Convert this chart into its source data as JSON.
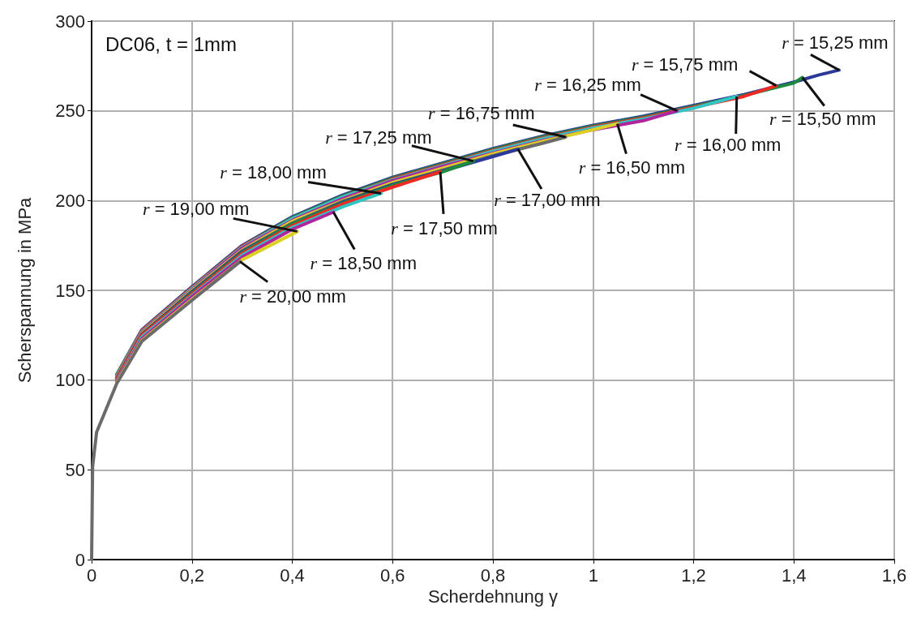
{
  "chart_data": {
    "type": "line",
    "title": "DC06, t = 1mm",
    "xlabel": "Scherdehnung γ",
    "ylabel": "Scherspannung in MPa",
    "xlim": [
      0,
      1.6
    ],
    "ylim": [
      0,
      300
    ],
    "xticks": [
      0,
      {
        "value": 0.2,
        "label": "0,2"
      },
      {
        "value": 0.4,
        "label": "0,4"
      },
      {
        "value": 0.6,
        "label": "0,6"
      },
      {
        "value": 0.8,
        "label": "0,8"
      },
      1,
      {
        "value": 1.2,
        "label": "1,2"
      },
      {
        "value": 1.4,
        "label": "1,4"
      },
      {
        "value": 1.6,
        "label": "1,6"
      }
    ],
    "yticks": [
      0,
      50,
      100,
      150,
      200,
      250,
      300
    ],
    "grid": true,
    "legend": false,
    "marker": "none",
    "line_style": "solid",
    "series": [
      {
        "name": "r = 15,25 mm",
        "color": "#2b3a98",
        "x": [
          0.05,
          0.1,
          0.2,
          0.3,
          0.4,
          0.5,
          0.6,
          0.7,
          0.8,
          0.9,
          1.0,
          1.1,
          1.2,
          1.3,
          1.4,
          1.45,
          1.49
        ],
        "values": [
          103,
          128,
          152,
          175,
          191,
          203,
          213,
          221,
          229,
          236,
          242,
          247,
          253,
          259,
          266,
          270,
          272.7
        ]
      },
      {
        "name": "r = 15,50 mm",
        "color": "#1a8c3c",
        "x": [
          0.05,
          0.1,
          0.2,
          0.3,
          0.4,
          0.5,
          0.6,
          0.7,
          0.8,
          0.9,
          1.0,
          1.1,
          1.2,
          1.3,
          1.4,
          1.417
        ],
        "values": [
          103,
          127.5,
          151.5,
          174.5,
          190.5,
          202.5,
          212.5,
          220.5,
          228.5,
          235.5,
          241.5,
          246.5,
          252.5,
          258.5,
          265.5,
          268.6
        ]
      },
      {
        "name": "r = 15,75 mm",
        "color": "#ee2a24",
        "x": [
          0.05,
          0.1,
          0.2,
          0.3,
          0.4,
          0.5,
          0.6,
          0.7,
          0.8,
          0.9,
          1.0,
          1.1,
          1.2,
          1.3,
          1.365
        ],
        "values": [
          102.5,
          127.5,
          151.5,
          174.5,
          190,
          202,
          212,
          220,
          228,
          235,
          241,
          246,
          252,
          258,
          264
        ]
      },
      {
        "name": "r = 16,00 mm",
        "color": "#33c4c4",
        "x": [
          0.05,
          0.1,
          0.2,
          0.3,
          0.4,
          0.5,
          0.6,
          0.7,
          0.8,
          0.9,
          1.0,
          1.1,
          1.2,
          1.286
        ],
        "values": [
          102.5,
          127,
          151,
          174,
          190,
          202,
          211.5,
          219.5,
          227.5,
          234.5,
          240.5,
          245.5,
          251.5,
          258
        ]
      },
      {
        "name": "r = 16,25 mm",
        "color": "#b0249c",
        "x": [
          0.05,
          0.1,
          0.2,
          0.3,
          0.4,
          0.5,
          0.6,
          0.7,
          0.8,
          0.9,
          1.0,
          1.1,
          1.167
        ],
        "values": [
          102,
          126.5,
          150.5,
          173.5,
          189,
          201,
          211,
          219,
          226.5,
          233.5,
          239.5,
          244.5,
          250
        ]
      },
      {
        "name": "r = 16,50 mm",
        "color": "#ddd024",
        "x": [
          0.05,
          0.1,
          0.2,
          0.3,
          0.4,
          0.5,
          0.6,
          0.7,
          0.8,
          0.9,
          1.0,
          1.048
        ],
        "values": [
          101.5,
          126,
          150,
          172.5,
          188.5,
          200,
          210,
          218,
          226,
          233,
          239.5,
          242.8
        ]
      },
      {
        "name": "r = 16,75 mm",
        "color": "#6b6b6b",
        "x": [
          0.05,
          0.1,
          0.2,
          0.3,
          0.4,
          0.5,
          0.6,
          0.7,
          0.8,
          0.9,
          0.945
        ],
        "values": [
          101,
          125.5,
          149.5,
          172,
          187.5,
          199.5,
          209,
          217,
          225,
          232,
          235.4
        ]
      },
      {
        "name": "r = 17,00 mm",
        "color": "#2b3a98",
        "x": [
          0.05,
          0.1,
          0.2,
          0.3,
          0.4,
          0.5,
          0.6,
          0.7,
          0.8,
          0.85
        ],
        "values": [
          101,
          125.5,
          149,
          171.5,
          187,
          199,
          209,
          216.5,
          224.5,
          228.6
        ]
      },
      {
        "name": "r = 17,25 mm",
        "color": "#1a8c3c",
        "x": [
          0.05,
          0.1,
          0.2,
          0.3,
          0.4,
          0.5,
          0.6,
          0.7,
          0.761
        ],
        "values": [
          100.5,
          125,
          148.5,
          171,
          187,
          198.5,
          208.5,
          216,
          222
        ]
      },
      {
        "name": "r = 17,50 mm",
        "color": "#ee2a24",
        "x": [
          0.05,
          0.1,
          0.2,
          0.3,
          0.4,
          0.5,
          0.6,
          0.695
        ],
        "values": [
          100.5,
          125,
          148,
          170.5,
          186,
          198,
          207.5,
          216
        ]
      },
      {
        "name": "r = 18,00 mm",
        "color": "#33c4c4",
        "x": [
          0.05,
          0.1,
          0.2,
          0.3,
          0.4,
          0.5,
          0.577
        ],
        "values": [
          99.5,
          124,
          147,
          169.5,
          185,
          196.5,
          204
        ]
      },
      {
        "name": "r = 18,50 mm",
        "color": "#b0249c",
        "x": [
          0.05,
          0.1,
          0.2,
          0.3,
          0.4,
          0.482
        ],
        "values": [
          99,
          123,
          146.5,
          168.5,
          184,
          193.6
        ]
      },
      {
        "name": "r = 19,00 mm",
        "color": "#ddd024",
        "x": [
          0.05,
          0.1,
          0.2,
          0.3,
          0.41
        ],
        "values": [
          98.5,
          122,
          145,
          167,
          182.8
        ]
      },
      {
        "name": "r = 20,00 mm",
        "color": "#6b6b6b",
        "x": [
          0,
          0.002,
          0.01,
          0.05,
          0.1,
          0.2,
          0.296
        ],
        "values": [
          0,
          52,
          71,
          98,
          121.5,
          144.5,
          166
        ]
      }
    ]
  }
}
